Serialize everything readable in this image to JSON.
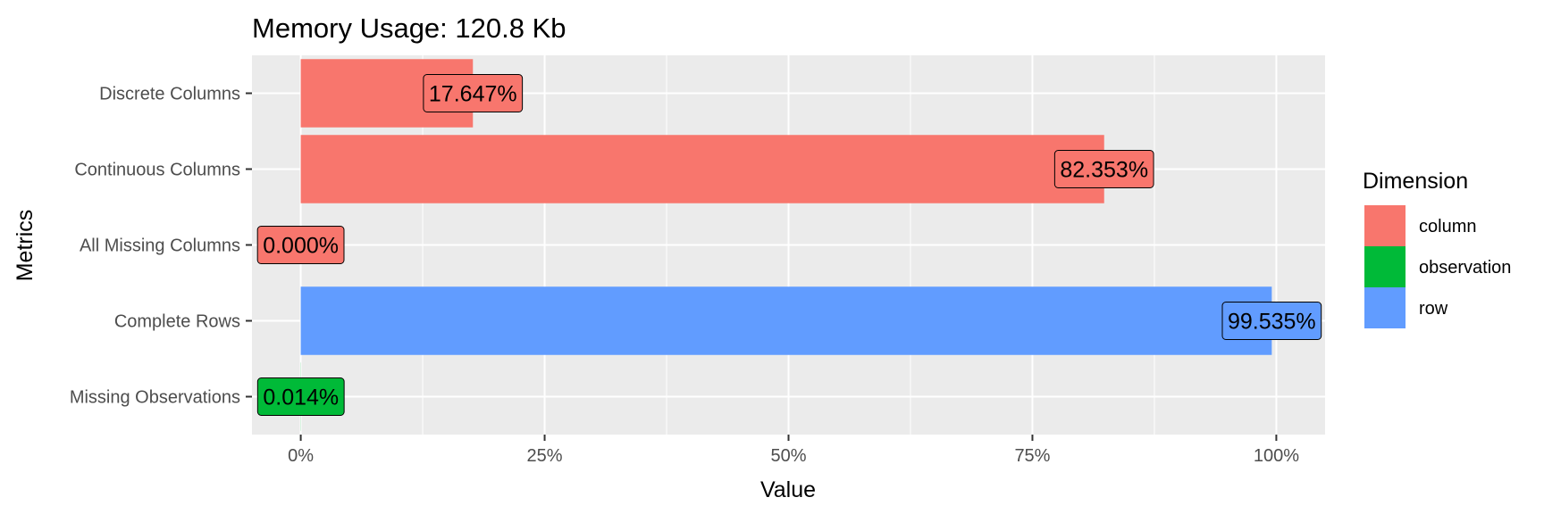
{
  "chart_data": {
    "type": "bar",
    "orientation": "horizontal",
    "title": "Memory Usage: 120.8 Kb",
    "xlabel": "Value",
    "ylabel": "Metrics",
    "xlim": [
      -0.05,
      1.05
    ],
    "x_ticks": [
      0,
      0.25,
      0.5,
      0.75,
      1.0
    ],
    "x_tick_labels": [
      "0%",
      "25%",
      "50%",
      "75%",
      "100%"
    ],
    "grid": true,
    "panel_background": "#ebebeb",
    "categories": [
      "Discrete Columns",
      "Continuous Columns",
      "All Missing Columns",
      "Complete Rows",
      "Missing Observations"
    ],
    "values": [
      0.17647,
      0.82353,
      0.0,
      0.99535,
      0.00014
    ],
    "labels": [
      "17.647%",
      "82.353%",
      "0.000%",
      "99.535%",
      "0.014%"
    ],
    "dimension": [
      "column",
      "column",
      "column",
      "row",
      "observation"
    ],
    "legend": {
      "title": "Dimension",
      "position": "right",
      "entries": [
        {
          "name": "column",
          "color": "#f8766d"
        },
        {
          "name": "observation",
          "color": "#00ba38"
        },
        {
          "name": "row",
          "color": "#619cff"
        }
      ]
    }
  }
}
